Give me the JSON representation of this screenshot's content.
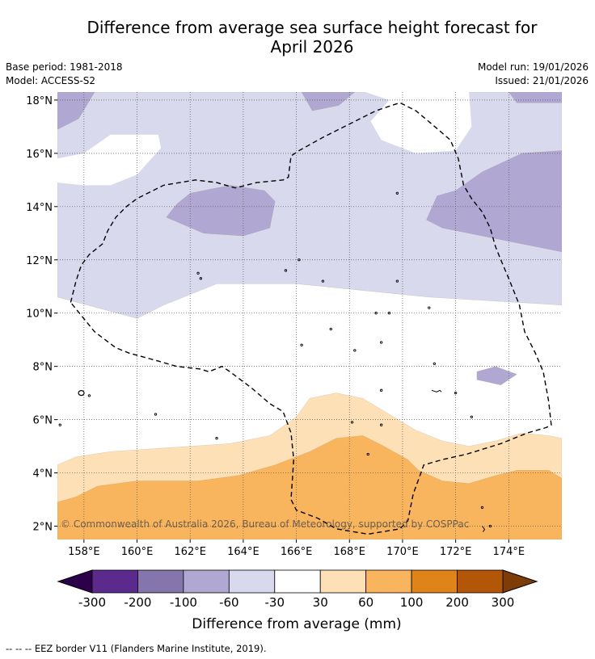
{
  "title_line1": "Difference from average sea surface height forecast for",
  "title_line2": "April 2026",
  "meta": {
    "base_period": "Base period: 1981-2018",
    "model": "Model: ACCESS-S2",
    "model_run": "Model run: 19/01/2026",
    "issued": "Issued: 21/01/2026"
  },
  "copyright": "© Commonwealth of Australia 2026, Bureau of Meteorology, supported by COSPPac",
  "footnote": "--  --  -- EEZ border V11 (Flanders Marine Institute, 2019).",
  "colors": {
    "c1": "#2d004b",
    "c2": "#5a2a8c",
    "c3": "#8475ad",
    "c4": "#b0a8d2",
    "c5": "#d8d9ec",
    "c6": "#ffffff",
    "c7": "#fde0b5",
    "c8": "#f9b45e",
    "c9": "#e08318",
    "c10": "#b25608",
    "c11": "#7f3b08"
  },
  "chart_data": {
    "type": "heatmap",
    "title": "Difference from average sea surface height forecast for April 2026",
    "xlabel": "",
    "ylabel": "",
    "xlim": [
      157,
      176
    ],
    "ylim": [
      1.5,
      18.3
    ],
    "x_ticks": [
      158,
      160,
      162,
      164,
      166,
      168,
      170,
      172,
      174
    ],
    "x_tick_labels": [
      "158°E",
      "160°E",
      "162°E",
      "164°E",
      "166°E",
      "168°E",
      "170°E",
      "172°E",
      "174°E"
    ],
    "y_ticks": [
      2,
      4,
      6,
      8,
      10,
      12,
      14,
      16,
      18
    ],
    "y_tick_labels": [
      "2°N",
      "4°N",
      "6°N",
      "8°N",
      "10°N",
      "12°N",
      "14°N",
      "16°N",
      "18°N"
    ],
    "grid": true,
    "colorbar": {
      "label": "Difference from average (mm)",
      "boundaries": [
        -300,
        -200,
        -100,
        -60,
        -30,
        30,
        60,
        100,
        200,
        300
      ],
      "tick_labels": [
        "-300",
        "-200",
        "-100",
        "-60",
        "-30",
        "30",
        "60",
        "100",
        "200",
        "300"
      ],
      "extend": "both"
    },
    "regions": [
      {
        "name": "-60 to -30 mm",
        "range": [
          -60,
          -30
        ],
        "color": "#d8d9ec",
        "polygon": [
          [
            157,
            18.3
          ],
          [
            176,
            18.3
          ],
          [
            176,
            10.3
          ],
          [
            171,
            10.6
          ],
          [
            168,
            10.9
          ],
          [
            166,
            11.1
          ],
          [
            163,
            11.1
          ],
          [
            161,
            10.3
          ],
          [
            160,
            9.8
          ],
          [
            157,
            10.6
          ]
        ]
      },
      {
        "name": "-30 to 30 mm",
        "range": [
          -30,
          30
        ],
        "color": "#ffffff",
        "polygon": [
          [
            157,
            15.8
          ],
          [
            158,
            16.0
          ],
          [
            159,
            16.7
          ],
          [
            160.8,
            16.7
          ],
          [
            160.9,
            16.2
          ],
          [
            160,
            15.2
          ],
          [
            159,
            14.8
          ],
          [
            158,
            14.8
          ],
          [
            157,
            14.9
          ]
        ]
      },
      {
        "name": "-30 to 30 mm",
        "range": [
          -30,
          30
        ],
        "color": "#ffffff",
        "polygon": [
          [
            168.6,
            18.3
          ],
          [
            169.5,
            18.0
          ],
          [
            168.8,
            17.2
          ],
          [
            169.2,
            16.5
          ],
          [
            170.5,
            16.0
          ],
          [
            172,
            16.1
          ],
          [
            172.6,
            17.0
          ],
          [
            172.5,
            18.3
          ]
        ]
      },
      {
        "name": "-100 to -60 mm",
        "range": [
          -100,
          -60
        ],
        "color": "#b0a8d2",
        "polygon": [
          [
            157,
            18.3
          ],
          [
            158.4,
            18.3
          ],
          [
            157.8,
            17.3
          ],
          [
            157,
            16.9
          ]
        ]
      },
      {
        "name": "-100 to -60 mm",
        "range": [
          -100,
          -60
        ],
        "color": "#b0a8d2",
        "polygon": [
          [
            166.2,
            18.3
          ],
          [
            168.2,
            18.3
          ],
          [
            167.6,
            17.8
          ],
          [
            166.6,
            17.6
          ]
        ]
      },
      {
        "name": "-100 to -60 mm",
        "range": [
          -100,
          -60
        ],
        "color": "#b0a8d2",
        "polygon": [
          [
            174,
            18.3
          ],
          [
            176,
            18.3
          ],
          [
            176,
            17.9
          ],
          [
            174.3,
            17.9
          ]
        ]
      },
      {
        "name": "-100 to -60 mm",
        "range": [
          -100,
          -60
        ],
        "color": "#b0a8d2",
        "polygon": [
          [
            162,
            14.5
          ],
          [
            163.5,
            14.8
          ],
          [
            164.8,
            14.6
          ],
          [
            165.2,
            14.2
          ],
          [
            165.0,
            13.2
          ],
          [
            164.0,
            12.9
          ],
          [
            162.5,
            13.0
          ],
          [
            161.1,
            13.6
          ],
          [
            161.5,
            14.1
          ]
        ]
      },
      {
        "name": "-100 to -60 mm",
        "range": [
          -100,
          -60
        ],
        "color": "#b0a8d2",
        "polygon": [
          [
            176,
            16.1
          ],
          [
            174.5,
            16.0
          ],
          [
            173,
            15.3
          ],
          [
            172,
            14.6
          ],
          [
            171.3,
            14.4
          ],
          [
            170.9,
            13.5
          ],
          [
            171.5,
            13.2
          ],
          [
            174,
            12.7
          ],
          [
            176,
            12.3
          ]
        ]
      },
      {
        "name": "-100 to -60 mm",
        "range": [
          -100,
          -60
        ],
        "color": "#b0a8d2",
        "polygon": [
          [
            172.8,
            7.8
          ],
          [
            173.5,
            8.0
          ],
          [
            174.3,
            7.7
          ],
          [
            173.7,
            7.3
          ],
          [
            172.8,
            7.5
          ]
        ]
      },
      {
        "name": "30 to 60 mm",
        "range": [
          30,
          60
        ],
        "color": "#fde0b5",
        "polygon": [
          [
            157,
            1.5
          ],
          [
            157,
            4.3
          ],
          [
            157.7,
            4.6
          ],
          [
            159,
            4.8
          ],
          [
            160.5,
            4.9
          ],
          [
            163.5,
            5.1
          ],
          [
            165,
            5.4
          ],
          [
            166,
            6.1
          ],
          [
            166.5,
            6.8
          ],
          [
            167.5,
            7.0
          ],
          [
            168.5,
            6.8
          ],
          [
            169.5,
            6.2
          ],
          [
            170.5,
            5.6
          ],
          [
            171.5,
            5.2
          ],
          [
            172.5,
            5.0
          ],
          [
            173.5,
            5.2
          ],
          [
            174.5,
            5.5
          ],
          [
            175.5,
            5.4
          ],
          [
            176,
            5.3
          ],
          [
            176,
            1.5
          ]
        ]
      },
      {
        "name": "60 to 100 mm",
        "range": [
          60,
          100
        ],
        "color": "#f9b45e",
        "polygon": [
          [
            157,
            1.5
          ],
          [
            157,
            2.9
          ],
          [
            157.7,
            3.1
          ],
          [
            158.5,
            3.5
          ],
          [
            160,
            3.7
          ],
          [
            162.3,
            3.7
          ],
          [
            163.8,
            3.9
          ],
          [
            165.2,
            4.3
          ],
          [
            166.5,
            4.8
          ],
          [
            167.5,
            5.3
          ],
          [
            168.5,
            5.4
          ],
          [
            169.3,
            5.0
          ],
          [
            170.2,
            4.5
          ],
          [
            170.6,
            4.1
          ],
          [
            171.5,
            3.7
          ],
          [
            172.5,
            3.6
          ],
          [
            173.5,
            3.9
          ],
          [
            174.3,
            4.1
          ],
          [
            175.5,
            4.1
          ],
          [
            176,
            3.8
          ],
          [
            176,
            1.5
          ]
        ]
      }
    ],
    "eez_border_lon_lat": [
      [
        157.5,
        10.4
      ],
      [
        157.7,
        11.2
      ],
      [
        157.9,
        11.8
      ],
      [
        158.2,
        12.2
      ],
      [
        158.7,
        12.6
      ],
      [
        158.9,
        13.1
      ],
      [
        159.2,
        13.6
      ],
      [
        159.6,
        14.0
      ],
      [
        160,
        14.3
      ],
      [
        161,
        14.8
      ],
      [
        162.2,
        15.0
      ],
      [
        163,
        14.9
      ],
      [
        163.7,
        14.7
      ],
      [
        164.5,
        14.9
      ],
      [
        165.5,
        15.0
      ],
      [
        165.7,
        15.1
      ],
      [
        165.8,
        15.9
      ],
      [
        166.1,
        16.1
      ],
      [
        167,
        16.6
      ],
      [
        168,
        17.1
      ],
      [
        169,
        17.6
      ],
      [
        169.9,
        17.9
      ],
      [
        170.5,
        17.6
      ],
      [
        171.1,
        17.1
      ],
      [
        171.8,
        16.5
      ],
      [
        172.1,
        15.8
      ],
      [
        172.3,
        14.8
      ],
      [
        172.6,
        14.3
      ],
      [
        173,
        13.8
      ],
      [
        173.3,
        13.2
      ],
      [
        173.5,
        12.5
      ],
      [
        173.7,
        12.0
      ],
      [
        174,
        11.3
      ],
      [
        174.4,
        10.3
      ],
      [
        174.6,
        9.3
      ],
      [
        175,
        8.5
      ],
      [
        175.3,
        7.8
      ],
      [
        175.5,
        6.7
      ],
      [
        175.6,
        5.8
      ],
      [
        175.4,
        5.7
      ],
      [
        174.7,
        5.5
      ],
      [
        173.7,
        5.1
      ],
      [
        172.4,
        4.7
      ],
      [
        171.5,
        4.5
      ],
      [
        170.8,
        4.3
      ],
      [
        170.4,
        3.2
      ],
      [
        170.2,
        2.2
      ],
      [
        169.9,
        1.9
      ],
      [
        168.7,
        1.7
      ],
      [
        167.5,
        1.9
      ],
      [
        166.8,
        2.3
      ],
      [
        166.0,
        2.6
      ],
      [
        165.8,
        3.0
      ],
      [
        165.9,
        4.5
      ],
      [
        165.8,
        5.5
      ],
      [
        165.5,
        6.3
      ],
      [
        165.0,
        6.6
      ],
      [
        164.3,
        7.2
      ],
      [
        163.5,
        7.8
      ],
      [
        163.2,
        8.0
      ],
      [
        162.7,
        7.8
      ],
      [
        162.4,
        7.9
      ],
      [
        161.5,
        8.0
      ],
      [
        160.8,
        8.2
      ],
      [
        159.7,
        8.5
      ],
      [
        159.2,
        8.7
      ],
      [
        158.4,
        9.3
      ],
      [
        157.5,
        10.4
      ]
    ]
  },
  "colorbar_label": "Difference from average (mm)"
}
